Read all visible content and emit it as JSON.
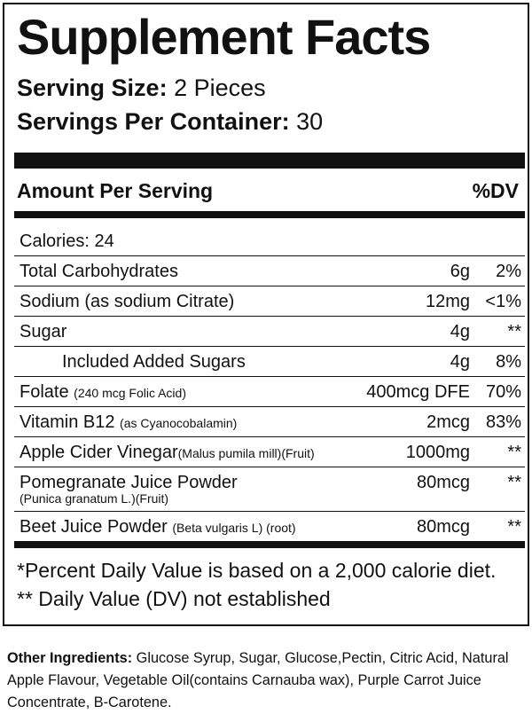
{
  "title": "Supplement Facts",
  "serving_size": {
    "label": "Serving Size:",
    "value": "2 Pieces"
  },
  "servings_per_container": {
    "label": "Servings Per Container:",
    "value": "30"
  },
  "table_header": {
    "amount": "Amount Per Serving",
    "dv": "%DV"
  },
  "calories": {
    "label": "Calories:",
    "value": "24"
  },
  "rows": [
    {
      "name": "Total Carbohydrates",
      "amount": "6g",
      "dv": "2%"
    },
    {
      "name": "Sodium (as sodium Citrate)",
      "amount": "12mg",
      "dv": "<1%"
    },
    {
      "name": "Sugar",
      "amount": "4g",
      "dv": "**"
    },
    {
      "name": "Included Added Sugars",
      "amount": "4g",
      "dv": "8%"
    },
    {
      "name": "Folate",
      "note": "(240 mcg Folic Acid)",
      "amount": "400mcg DFE",
      "dv": "70%"
    },
    {
      "name": "Vitamin B12",
      "note": "(as Cyanocobalamin)",
      "amount": "2mcg",
      "dv": "83%"
    },
    {
      "name": "Apple Cider Vinegar",
      "note": "(Malus pumila mill)(Fruit)",
      "amount": "1000mg",
      "dv": "**"
    },
    {
      "name": "Pomegranate Juice Powder",
      "note": "(Punica granatum L.)(Fruit)",
      "amount": "80mcg",
      "dv": "**"
    },
    {
      "name": "Beet Juice Powder",
      "note": "(Beta vulgaris L) (root)",
      "amount": "80mcg",
      "dv": "**"
    }
  ],
  "footnotes": [
    "*Percent Daily Value is based on a 2,000 calorie diet.",
    "** Daily Value (DV) not established"
  ],
  "other_ingredients": {
    "label": "Other Ingredients:",
    "text": "Glucose Syrup, Sugar, Glucose,Pectin, Citric Acid,  Natural Apple Flavour, Vegetable Oil(contains Carnauba wax), Purple Carrot Juice Concentrate, B-Carotene."
  }
}
